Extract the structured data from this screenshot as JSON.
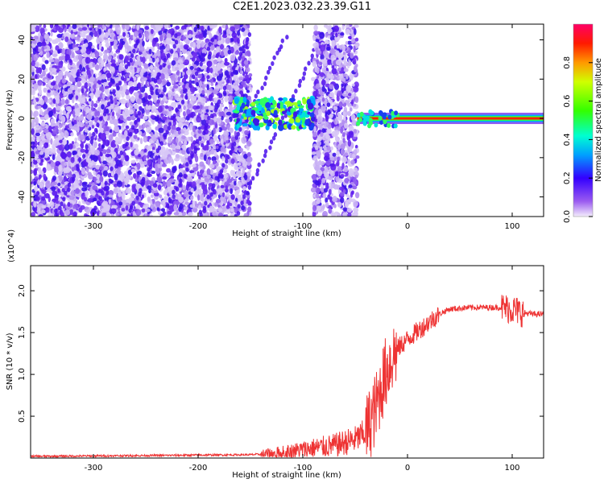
{
  "title": "C2E1.2023.032.23.39.G11",
  "chart_data": [
    {
      "type": "heatmap",
      "xlabel": "Height of straight line (km)",
      "ylabel": "Frequency (Hz)",
      "xlim": [
        -360,
        130
      ],
      "ylim": [
        -50,
        48
      ],
      "x_ticks": [
        -300,
        -200,
        -100,
        0,
        100
      ],
      "y_ticks": [
        -40,
        -20,
        0,
        20,
        40
      ],
      "colorbar": {
        "label": "Normalized spectral amplitude",
        "range": [
          0.0,
          1.0
        ],
        "ticks": [
          0.0,
          0.2,
          0.4,
          0.6,
          0.8
        ]
      },
      "features": [
        {
          "x": [
            -360,
            -150
          ],
          "y": [
            -50,
            48
          ],
          "level": 0.25,
          "kind": "broadband noise"
        },
        {
          "x": [
            -90,
            -48
          ],
          "y": [
            -50,
            48
          ],
          "level": 0.25,
          "kind": "broadband noise"
        },
        {
          "x": [
            -165,
            -90
          ],
          "y": [
            -5,
            10
          ],
          "level": 0.4,
          "kind": "signal band"
        },
        {
          "x": [
            -48,
            130
          ],
          "y": [
            -3,
            3
          ],
          "level": 0.85,
          "kind": "carrier line at 0 Hz"
        }
      ]
    },
    {
      "type": "line",
      "xlabel": "Height of straight line (km)",
      "ylabel": "SNR (10 * v/v)",
      "y_multiplier": "(x10^4)",
      "xlim": [
        -360,
        130
      ],
      "ylim": [
        0,
        2.3
      ],
      "x_ticks": [
        -300,
        -200,
        -100,
        0,
        100
      ],
      "y_ticks": [
        0.5,
        1.0,
        1.5,
        2.0
      ],
      "color": "#ee3333",
      "series": [
        {
          "x": [
            -360,
            -300,
            -250,
            -200,
            -150,
            -130,
            -110,
            -90,
            -70,
            -50,
            -40,
            -30,
            -25,
            -20,
            -15,
            -10,
            0,
            10,
            20,
            30,
            40,
            60,
            80,
            90,
            100,
            110,
            120,
            130
          ],
          "y": [
            0.02,
            0.025,
            0.03,
            0.035,
            0.04,
            0.05,
            0.08,
            0.12,
            0.15,
            0.22,
            0.3,
            0.6,
            0.85,
            1.05,
            1.2,
            1.3,
            1.42,
            1.52,
            1.62,
            1.72,
            1.78,
            1.8,
            1.8,
            1.8,
            1.78,
            1.74,
            1.72,
            1.72
          ]
        }
      ]
    }
  ]
}
